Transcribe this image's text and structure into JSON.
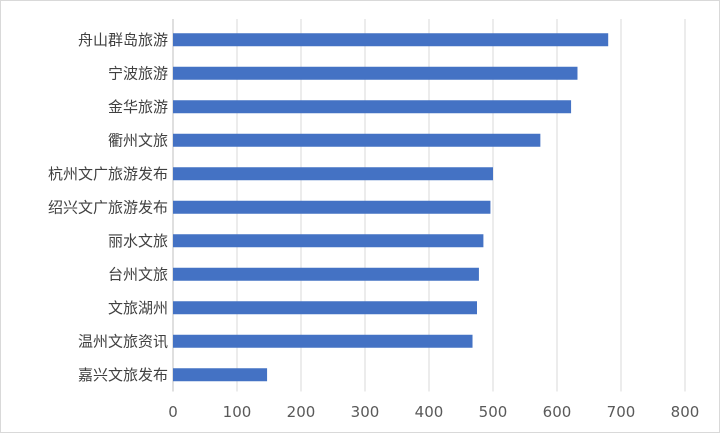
{
  "chart_data": {
    "type": "bar",
    "orientation": "horizontal",
    "title": "",
    "xlabel": "",
    "ylabel": "",
    "categories": [
      "舟山群岛旅游",
      "宁波旅游",
      "金华旅游",
      "衢州文旅",
      "杭州文广旅游发布",
      "绍兴文广旅游发布",
      "丽水文旅",
      "台州文旅",
      "文旅湖州",
      "温州文旅资讯",
      "嘉兴文旅发布"
    ],
    "values": [
      680,
      632,
      622,
      574,
      500,
      496,
      485,
      478,
      475,
      468,
      147
    ],
    "xlim": [
      0,
      800
    ],
    "xticks": [
      0,
      100,
      200,
      300,
      400,
      500,
      600,
      700,
      800
    ],
    "xtick_labels": [
      "0",
      "100",
      "200",
      "300",
      "400",
      "500",
      "600",
      "700",
      "800"
    ],
    "grid": "vertical",
    "legend": "none",
    "bar_color": "#4472c4"
  }
}
